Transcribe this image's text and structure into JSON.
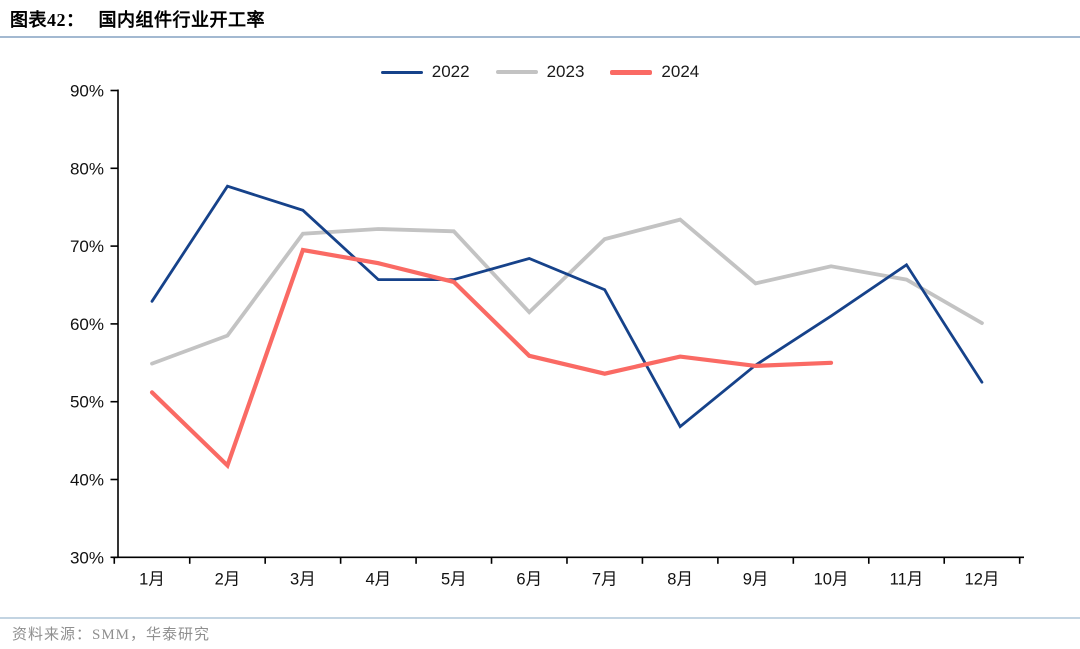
{
  "header": {
    "title_prefix": "图表42：",
    "title_text": "国内组件行业开工率"
  },
  "source": {
    "text": "资料来源：SMM，华泰研究"
  },
  "colors": {
    "title_rule": "#a3b9d1",
    "footer_rule": "#c3d4e2",
    "axis": "#000000",
    "tick_label": "#111111",
    "source_text": "#8f8f8f"
  },
  "chart_data": {
    "type": "line",
    "title": "国内组件行业开工率",
    "categories": [
      "1月",
      "2月",
      "3月",
      "4月",
      "5月",
      "6月",
      "7月",
      "8月",
      "9月",
      "10月",
      "11月",
      "12月"
    ],
    "series": [
      {
        "name": "2022",
        "color": "#16428a",
        "values": [
          62.9,
          77.7,
          74.6,
          65.7,
          65.7,
          68.4,
          64.4,
          46.8,
          54.7,
          61.0,
          67.6,
          52.5
        ]
      },
      {
        "name": "2023",
        "color": "#c3c3c3",
        "values": [
          54.9,
          58.5,
          71.6,
          72.2,
          71.9,
          61.5,
          70.9,
          73.4,
          65.2,
          67.4,
          65.7,
          60.1
        ]
      },
      {
        "name": "2024",
        "color": "#fa6a64",
        "values": [
          51.2,
          41.8,
          69.5,
          67.8,
          65.4,
          55.9,
          53.6,
          55.8,
          54.6,
          55.0,
          null,
          null
        ]
      }
    ],
    "ylim": [
      30,
      90
    ],
    "y_ticks": [
      90,
      80,
      70,
      60,
      50,
      40,
      30
    ],
    "y_tick_suffix": "%",
    "grid": false,
    "legend_position": "top-center"
  }
}
